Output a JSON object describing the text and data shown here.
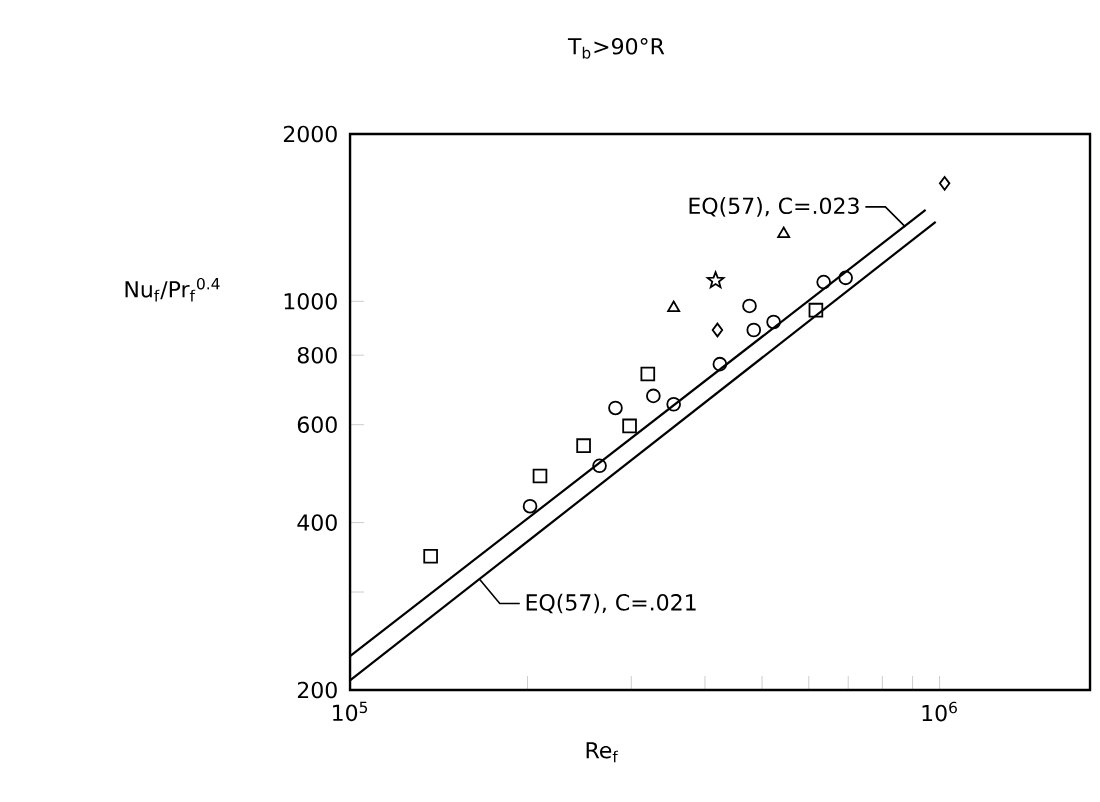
{
  "chart_data": {
    "type": "scatter",
    "title": "T$_{b}$>90°R",
    "xlabel": "Re$_{f}$",
    "ylabel": "Nu$_{f}$/Pr$_{f}$$^{0.4}$",
    "log": "xy",
    "xlim": [
      100000,
      1800000
    ],
    "ylim": [
      200,
      2000
    ],
    "xticks": [
      {
        "value": 100000,
        "label": "10$^{5}$"
      },
      {
        "value": 200000,
        "label": null
      },
      {
        "value": 300000,
        "label": null
      },
      {
        "value": 400000,
        "label": null
      },
      {
        "value": 500000,
        "label": null
      },
      {
        "value": 600000,
        "label": null
      },
      {
        "value": 700000,
        "label": null
      },
      {
        "value": 800000,
        "label": null
      },
      {
        "value": 900000,
        "label": null
      },
      {
        "value": 1000000,
        "label": "10$^{6}$"
      }
    ],
    "yticks": [
      200,
      {
        "value": 300,
        "label": null
      },
      400,
      600,
      800,
      1000,
      2000
    ],
    "series": [
      {
        "type": "scatter",
        "marker": "square",
        "color": "#000000",
        "x": [
          137000,
          210000,
          249000,
          298000,
          320000,
          617000
        ],
        "values": [
          348,
          485,
          550,
          597,
          740,
          964
        ]
      },
      {
        "type": "scatter",
        "marker": "circle",
        "color": "#000000",
        "x": [
          202000,
          265000,
          282000,
          327000,
          354000,
          424000,
          476000,
          484000,
          523000,
          636000,
          693000
        ],
        "values": [
          428,
          506,
          643,
          676,
          653,
          771,
          981,
          888,
          918,
          1083,
          1102
        ]
      },
      {
        "type": "scatter",
        "marker": "triangle",
        "color": "#000000",
        "x": [
          354000,
          544000
        ],
        "values": [
          973,
          1322
        ]
      },
      {
        "type": "scatter",
        "marker": "diamond",
        "color": "#000000",
        "x": [
          420000,
          1020000
        ],
        "values": [
          888,
          1630
        ]
      },
      {
        "type": "scatter",
        "marker": "star",
        "color": "#000000",
        "x": [
          417000
        ],
        "values": [
          1090
        ]
      },
      {
        "type": "line",
        "color": "#000000",
        "x": [
          100000,
          947000
        ],
        "values": [
          230,
          1460
        ]
      },
      {
        "type": "line",
        "color": "#000000",
        "x": [
          100000,
          985000
        ],
        "values": [
          208,
          1390
        ]
      }
    ],
    "annotations": [
      {
        "text": "EQ(57), C=.023",
        "x": 875000,
        "y": 1361
      },
      {
        "text": "EQ(57), C=.021",
        "x": 166000,
        "y": 316
      }
    ]
  }
}
